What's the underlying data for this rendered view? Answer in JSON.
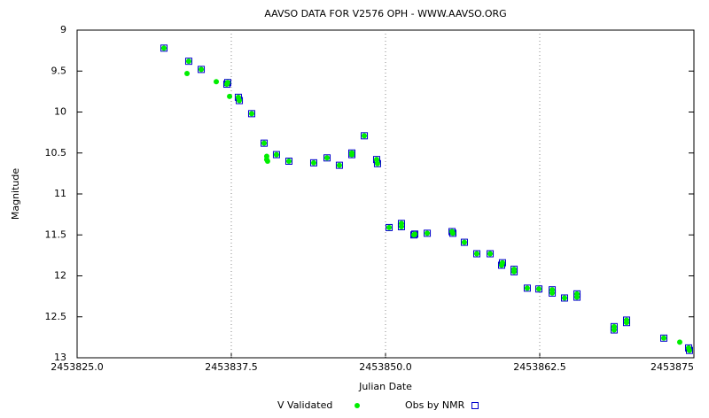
{
  "chart_data": {
    "type": "scatter",
    "title": "AAVSO DATA FOR V2576 OPH - WWW.AAVSO.ORG",
    "x_label": "Julian Date",
    "y_label": "Magnitude",
    "xlim": [
      2453825.0,
      2453875.0
    ],
    "xticks": [
      {
        "value": 2453825.0,
        "label": "2453825.0"
      },
      {
        "value": 2453837.5,
        "label": "2453837.5"
      },
      {
        "value": 2453850.0,
        "label": "2453850.0"
      },
      {
        "value": 2453862.5,
        "label": "2453862.5"
      },
      {
        "value": 2453875.0,
        "label": "2453875"
      }
    ],
    "ylim": [
      13,
      9
    ],
    "yticks": [
      9,
      9.5,
      10,
      10.5,
      11,
      11.5,
      12,
      12.5,
      13
    ],
    "grid": true,
    "legend": "bottom",
    "series": [
      {
        "name": "V Validated",
        "color": "#00ee00",
        "marker": "circle",
        "x": [
          2453832.04,
          2453833.91,
          2453834.05,
          2453835.06,
          2453836.28,
          2453837.14,
          2453837.21,
          2453837.36,
          2453838.07,
          2453838.15,
          2453839.15,
          2453840.16,
          2453840.37,
          2453840.37,
          2453840.44,
          2453841.16,
          2453842.17,
          2453844.18,
          2453845.26,
          2453846.26,
          2453847.27,
          2453847.27,
          2453848.28,
          2453849.28,
          2453849.35,
          2453850.29,
          2453851.29,
          2453851.29,
          2453852.3,
          2453852.37,
          2453853.38,
          2453855.39,
          2453855.46,
          2453856.39,
          2453857.4,
          2453858.48,
          2453859.41,
          2453859.48,
          2453860.42,
          2453860.42,
          2453861.49,
          2453862.43,
          2453863.51,
          2453863.51,
          2453864.51,
          2453865.52,
          2453865.52,
          2453868.53,
          2453868.53,
          2453869.54,
          2453869.54,
          2453872.56,
          2453873.85,
          2453874.57,
          2453874.64
        ],
        "values": [
          9.22,
          9.53,
          9.38,
          9.48,
          9.63,
          9.66,
          9.64,
          9.81,
          9.82,
          9.86,
          10.02,
          10.38,
          10.54,
          10.58,
          10.6,
          10.52,
          10.6,
          10.62,
          10.56,
          10.65,
          10.52,
          10.5,
          10.29,
          10.58,
          10.63,
          11.41,
          11.36,
          11.4,
          11.5,
          11.49,
          11.48,
          11.46,
          11.48,
          11.59,
          11.73,
          11.73,
          11.87,
          11.84,
          11.92,
          11.95,
          12.15,
          12.16,
          12.17,
          12.21,
          12.27,
          12.22,
          12.26,
          12.62,
          12.66,
          12.54,
          12.57,
          12.76,
          12.81,
          12.88,
          12.91
        ]
      },
      {
        "name": "Obs by NMR",
        "color": "#0000cc",
        "marker": "square",
        "x": [
          2453832.04,
          2453834.05,
          2453835.06,
          2453837.14,
          2453837.21,
          2453838.07,
          2453838.15,
          2453839.15,
          2453840.16,
          2453841.16,
          2453842.17,
          2453844.18,
          2453845.26,
          2453846.26,
          2453847.27,
          2453847.27,
          2453848.28,
          2453849.28,
          2453849.35,
          2453850.29,
          2453851.29,
          2453851.29,
          2453852.3,
          2453852.37,
          2453853.38,
          2453855.39,
          2453855.46,
          2453856.39,
          2453857.4,
          2453858.48,
          2453859.41,
          2453859.48,
          2453860.42,
          2453860.42,
          2453861.49,
          2453862.43,
          2453863.51,
          2453863.51,
          2453864.51,
          2453865.52,
          2453865.52,
          2453868.53,
          2453868.53,
          2453869.54,
          2453869.54,
          2453872.56,
          2453874.57,
          2453874.64
        ],
        "values": [
          9.22,
          9.38,
          9.48,
          9.66,
          9.64,
          9.82,
          9.86,
          10.02,
          10.38,
          10.52,
          10.6,
          10.62,
          10.56,
          10.65,
          10.52,
          10.5,
          10.29,
          10.58,
          10.63,
          11.41,
          11.36,
          11.4,
          11.5,
          11.49,
          11.48,
          11.46,
          11.48,
          11.59,
          11.73,
          11.73,
          11.87,
          11.84,
          11.92,
          11.95,
          12.15,
          12.16,
          12.17,
          12.21,
          12.27,
          12.22,
          12.26,
          12.62,
          12.66,
          12.54,
          12.57,
          12.76,
          12.88,
          12.91
        ]
      }
    ]
  }
}
